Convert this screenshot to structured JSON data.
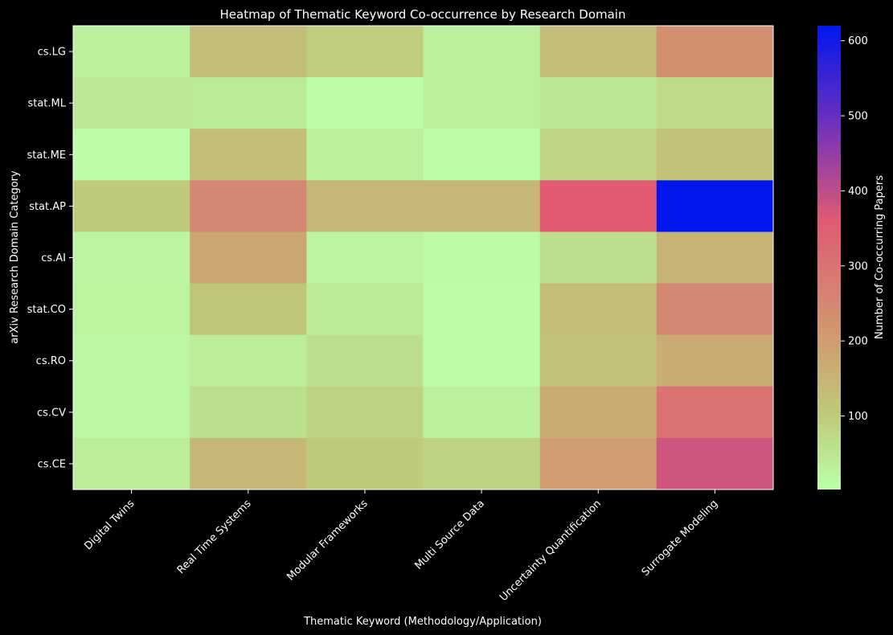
{
  "chart_data": {
    "type": "heatmap",
    "title": "Heatmap of Thematic Keyword Co-occurrence by Research Domain",
    "xlabel": "Thematic Keyword (Methodology/Application)",
    "ylabel": "arXiv Research Domain Category",
    "x_categories": [
      "Digital Twins",
      "Real Time Systems",
      "Modular Frameworks",
      "Multi Source Data",
      "Uncertainty Quantification",
      "Surrogate Modeling"
    ],
    "y_categories": [
      "cs.LG",
      "stat.ML",
      "stat.ME",
      "stat.AP",
      "cs.AI",
      "stat.CO",
      "cs.RO",
      "cs.CV",
      "cs.CE"
    ],
    "values": [
      [
        30,
        130,
        95,
        30,
        130,
        230
      ],
      [
        45,
        40,
        5,
        30,
        50,
        70
      ],
      [
        5,
        125,
        30,
        5,
        80,
        120
      ],
      [
        100,
        250,
        145,
        145,
        360,
        620
      ],
      [
        20,
        180,
        20,
        10,
        60,
        150
      ],
      [
        25,
        110,
        40,
        5,
        130,
        250
      ],
      [
        15,
        35,
        65,
        5,
        120,
        170
      ],
      [
        15,
        60,
        85,
        30,
        170,
        300
      ],
      [
        35,
        140,
        100,
        85,
        200,
        380
      ]
    ],
    "colorbar": {
      "label": "Number of Co-occurring Papers",
      "range": [
        2,
        620
      ],
      "ticks": [
        100,
        200,
        300,
        400,
        500,
        600
      ],
      "colors": [
        "#bbffaa",
        "#bfc979",
        "#d09a70",
        "#e05a73",
        "#6a2ec0",
        "#0018ee"
      ]
    }
  }
}
